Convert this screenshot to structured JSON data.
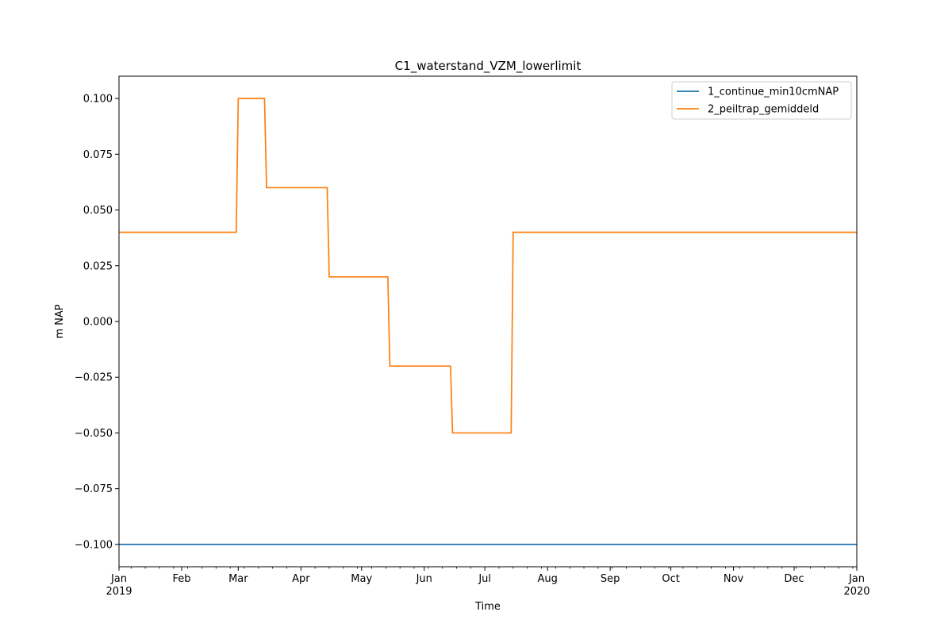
{
  "chart_data": {
    "type": "line",
    "title": "C1_waterstand_VZM_lowerlimit",
    "xlabel": "Time",
    "ylabel": "m NAP",
    "xlim": [
      "2019-01-01",
      "2020-01-01"
    ],
    "ylim": [
      -0.11,
      0.11
    ],
    "y_ticks": [
      -0.1,
      -0.075,
      -0.05,
      -0.025,
      0.0,
      0.025,
      0.05,
      0.075,
      0.1
    ],
    "y_tick_labels": [
      "−0.100",
      "−0.075",
      "−0.050",
      "−0.025",
      "0.000",
      "0.025",
      "0.050",
      "0.075",
      "0.100"
    ],
    "x_ticks": [
      {
        "date": "2019-01-01",
        "label": "Jan",
        "sublabel": "2019"
      },
      {
        "date": "2019-02-01",
        "label": "Feb",
        "sublabel": ""
      },
      {
        "date": "2019-03-01",
        "label": "Mar",
        "sublabel": ""
      },
      {
        "date": "2019-04-01",
        "label": "Apr",
        "sublabel": ""
      },
      {
        "date": "2019-05-01",
        "label": "May",
        "sublabel": ""
      },
      {
        "date": "2019-06-01",
        "label": "Jun",
        "sublabel": ""
      },
      {
        "date": "2019-07-01",
        "label": "Jul",
        "sublabel": ""
      },
      {
        "date": "2019-08-01",
        "label": "Aug",
        "sublabel": ""
      },
      {
        "date": "2019-09-01",
        "label": "Sep",
        "sublabel": ""
      },
      {
        "date": "2019-10-01",
        "label": "Oct",
        "sublabel": ""
      },
      {
        "date": "2019-11-01",
        "label": "Nov",
        "sublabel": ""
      },
      {
        "date": "2019-12-01",
        "label": "Dec",
        "sublabel": ""
      },
      {
        "date": "2020-01-01",
        "label": "Jan",
        "sublabel": "2020"
      }
    ],
    "grid": false,
    "legend_position": "top-right",
    "series": [
      {
        "name": "1_continue_min10cmNAP",
        "color": "#1f77b4",
        "points": [
          {
            "x": "2019-01-01",
            "y": -0.1
          },
          {
            "x": "2020-01-01",
            "y": -0.1
          }
        ]
      },
      {
        "name": "2_peiltrap_gemiddeld",
        "color": "#ff7f0e",
        "points": [
          {
            "x": "2019-01-01",
            "y": 0.04
          },
          {
            "x": "2019-02-28",
            "y": 0.04
          },
          {
            "x": "2019-03-01",
            "y": 0.1
          },
          {
            "x": "2019-03-14",
            "y": 0.1
          },
          {
            "x": "2019-03-15",
            "y": 0.06
          },
          {
            "x": "2019-04-14",
            "y": 0.06
          },
          {
            "x": "2019-04-15",
            "y": 0.02
          },
          {
            "x": "2019-05-14",
            "y": 0.02
          },
          {
            "x": "2019-05-15",
            "y": -0.02
          },
          {
            "x": "2019-06-14",
            "y": -0.02
          },
          {
            "x": "2019-06-15",
            "y": -0.05
          },
          {
            "x": "2019-07-14",
            "y": -0.05
          },
          {
            "x": "2019-07-15",
            "y": 0.04
          },
          {
            "x": "2020-01-01",
            "y": 0.04
          }
        ]
      }
    ]
  }
}
